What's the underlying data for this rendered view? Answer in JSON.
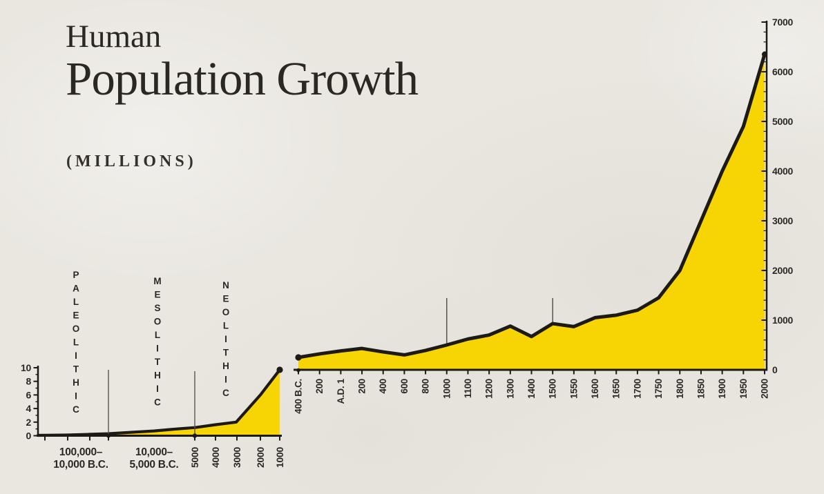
{
  "title": {
    "kicker": "Human",
    "main": "Population Growth",
    "units_label": "(MILLIONS)"
  },
  "colors": {
    "background": "#EAE7E1",
    "area_fill": "#F7D403",
    "line": "#1D1A16",
    "text": "#2B2824",
    "muted_line": "#57534D"
  },
  "chart_data": [
    {
      "type": "area",
      "panel": "left",
      "title": "Population before 1000 B.C.",
      "ylabel": "millions",
      "ylim": [
        0,
        10
      ],
      "y_ticks": [
        10,
        8,
        6,
        4,
        2,
        0
      ],
      "y_minor_ticks": [
        9,
        7,
        5,
        3,
        1
      ],
      "era_labels": [
        "PALEOLITHIC",
        "MESOLITHIC",
        "NEOLITHIC"
      ],
      "era_boundaries": [
        "10,000 B.C.",
        "5,000 B.C."
      ],
      "x_segment_labels": [
        {
          "line1": "100,000–",
          "line2": "10,000 B.C."
        },
        {
          "line1": "10,000–",
          "line2": "5,000 B.C."
        }
      ],
      "x_tick_labels": [
        "5000",
        "4000",
        "3000",
        "2000",
        "1000"
      ],
      "values_at_ticks": {
        "100,000 B.C.": 0.05,
        "10,000 B.C.": 0.3,
        "5000 B.C.": 1.2,
        "4000 B.C.": 1.6,
        "3000 B.C.": 2,
        "2000 B.C.": 6,
        "1000 B.C.": 9.7
      },
      "curve_points": [
        {
          "pos": 0.0,
          "value": 0.05
        },
        {
          "pos": 0.12,
          "value": 0.1
        },
        {
          "pos": 0.21,
          "value": 0.2
        },
        {
          "pos": 0.29,
          "value": 0.3
        },
        {
          "pos": 0.48,
          "value": 0.7
        },
        {
          "pos": 0.56,
          "value": 0.95
        },
        {
          "pos": 0.65,
          "value": 1.2
        },
        {
          "pos": 0.73,
          "value": 1.6
        },
        {
          "pos": 0.82,
          "value": 2.0
        },
        {
          "pos": 0.92,
          "value": 6.0
        },
        {
          "pos": 1.0,
          "value": 9.7
        }
      ]
    },
    {
      "type": "area",
      "panel": "right",
      "title": "Population 400 B.C. to A.D. 2000",
      "ylabel": "millions",
      "ylim": [
        0,
        7000
      ],
      "y_tick_step": 1000,
      "y_minor_tick_step": 200,
      "categories": [
        "400 B.C.",
        "200",
        "A.D. 1",
        "200",
        "400",
        "600",
        "800",
        "1000",
        "1100",
        "1200",
        "1300",
        "1400",
        "1500",
        "1550",
        "1600",
        "1650",
        "1700",
        "1750",
        "1800",
        "1850",
        "1900",
        "1950",
        "2000"
      ],
      "values": [
        250,
        320,
        380,
        430,
        360,
        300,
        390,
        500,
        620,
        700,
        880,
        670,
        930,
        870,
        1050,
        1100,
        1200,
        1450,
        2000,
        3000,
        4000,
        4900,
        6350
      ],
      "reference_lines": [
        "1000",
        "1500"
      ]
    }
  ]
}
